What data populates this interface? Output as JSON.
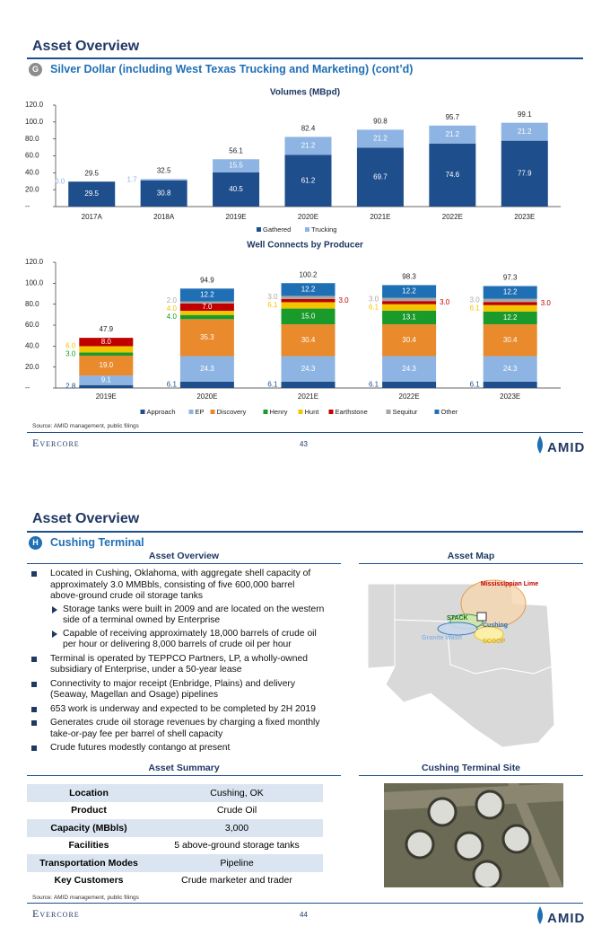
{
  "chart_data": [
    {
      "type": "bar",
      "stacked": true,
      "title": "Volumes (MBpd)",
      "categories": [
        "2017A",
        "2018A",
        "2019E",
        "2020E",
        "2021E",
        "2022E",
        "2023E"
      ],
      "series": [
        {
          "name": "Gathered",
          "color": "#1f4e8c",
          "values": [
            29.5,
            30.8,
            40.5,
            61.2,
            69.7,
            74.6,
            77.9
          ]
        },
        {
          "name": "Trucking",
          "color": "#8eb4e3",
          "values": [
            0,
            1.7,
            15.5,
            21.2,
            21.2,
            21.2,
            21.2
          ],
          "value_labels": [
            "0.0",
            "1.7",
            "15.5",
            "21.2",
            "21.2",
            "21.2",
            "21.2"
          ]
        }
      ],
      "total_labels": [
        29.5,
        32.5,
        56.1,
        82.4,
        90.8,
        95.7,
        99.1
      ],
      "ylim": [
        0,
        120
      ],
      "yticks": [
        {
          "value": 0,
          "label": "--"
        },
        {
          "value": 20,
          "label": "20.0"
        },
        {
          "value": 40,
          "label": "40.0"
        },
        {
          "value": 60,
          "label": "60.0"
        },
        {
          "value": 80,
          "label": "80.0"
        },
        {
          "value": 100,
          "label": "100.0"
        },
        {
          "value": 120,
          "label": "120.0"
        }
      ],
      "legend": "bottom"
    },
    {
      "type": "bar",
      "stacked": true,
      "title": "Well Connects by Producer",
      "categories": [
        "2019E",
        "2020E",
        "2021E",
        "2022E",
        "2023E"
      ],
      "series": [
        {
          "name": "Approach",
          "color": "#1f4e8c",
          "values": [
            2.8,
            6.1,
            6.1,
            6.1,
            6.1
          ],
          "value_labels": [
            "2.8",
            "6.1",
            "6.1",
            "6.1",
            "6.1"
          ]
        },
        {
          "name": "EP",
          "color": "#8eb4e3",
          "values": [
            9.1,
            24.3,
            24.3,
            24.3,
            24.3
          ],
          "value_labels": [
            "9.1",
            "24.3",
            "24.3",
            "24.3",
            "24.3"
          ]
        },
        {
          "name": "Discovery",
          "color": "#e98a2c",
          "values": [
            19.0,
            35.3,
            30.4,
            30.4,
            30.4
          ],
          "value_labels": [
            "19.0",
            "35.3",
            "30.4",
            "30.4",
            "30.4"
          ]
        },
        {
          "name": "Henry",
          "color": "#1a9a2a",
          "values": [
            3.0,
            4.0,
            15.0,
            13.1,
            12.2
          ],
          "value_labels": [
            "3.0",
            "4.0",
            "15.0",
            "13.1",
            "12.2"
          ]
        },
        {
          "name": "Hunt",
          "color": "#f2c500",
          "values": [
            6.0,
            4.0,
            6.1,
            6.1,
            6.1
          ],
          "value_labels": [
            "6.0",
            "4.0",
            "6.1",
            "6.1",
            "6.1"
          ]
        },
        {
          "name": "Earthstone",
          "color": "#c00000",
          "values": [
            8.0,
            7.0,
            3.0,
            3.0,
            3.0
          ],
          "value_labels": [
            "8.0",
            "7.0",
            "3.0",
            "3.0",
            "3.0"
          ]
        },
        {
          "name": "Sequitur",
          "color": "#a6a6a6",
          "values": [
            null,
            2.0,
            3.0,
            3.0,
            3.0
          ],
          "value_labels": [
            null,
            "2.0",
            "3.0",
            "3.0",
            "3.0"
          ]
        },
        {
          "name": "Other",
          "color": "#1f6fb5",
          "values": [
            null,
            12.2,
            12.2,
            12.2,
            12.2
          ]
        }
      ],
      "total_labels": [
        47.9,
        94.9,
        100.2,
        98.3,
        97.3
      ],
      "ylim": [
        0,
        120
      ],
      "yticks": [
        {
          "value": 0,
          "label": "--"
        },
        {
          "value": 20,
          "label": "20.0"
        },
        {
          "value": 40,
          "label": "40.0"
        },
        {
          "value": 60,
          "label": "60.0"
        },
        {
          "value": 80,
          "label": "80.0"
        },
        {
          "value": 100,
          "label": "100.0"
        },
        {
          "value": 120,
          "label": "120.0"
        }
      ],
      "legend": "bottom"
    }
  ],
  "page1": {
    "title": "Asset Overview",
    "section_letter": "G",
    "section": "Silver Dollar (including West Texas Trucking and Marketing) (cont’d)",
    "source": "Source: AMID management, public filings",
    "footer": "Evercore",
    "page_number": "43",
    "logo": "AMID"
  },
  "page2": {
    "title": "Asset Overview",
    "section_letter": "H",
    "section": "Cushing Terminal",
    "overview_heading": "Asset Overview",
    "bullets": [
      {
        "text": "Located in Cushing, Oklahoma, with aggregate shell capacity of approximately 3.0 MMBbls, consisting of five 600,000 barrel above-ground crude oil storage tanks",
        "sub": [
          "Storage tanks were built in 2009 and are located on the western side of a terminal owned by Enterprise",
          "Capable of receiving approximately 18,000 barrels of crude oil per hour or delivering 8,000 barrels of crude oil per hour"
        ]
      },
      {
        "text": "Terminal is operated by TEPPCO Partners, LP, a wholly-owned subsidiary of Enterprise, under a 50-year lease"
      },
      {
        "text": "Connectivity to major receipt (Enbridge, Plains) and delivery (Seaway, Magellan and Osage) pipelines"
      },
      {
        "text": "653 work is underway and expected to be completed by 2H 2019"
      },
      {
        "text": "Generates crude oil storage revenues by charging a fixed monthly take-or-pay fee per barrel of shell capacity"
      },
      {
        "text": "Crude futures modestly contango at present"
      }
    ],
    "map_heading": "Asset Map",
    "map_labels": [
      "Mississippian Lime",
      "STACK",
      "Cushing",
      "Granite Wash",
      "SCOOP"
    ],
    "summary_heading": "Asset Summary",
    "table": {
      "rows": [
        [
          "Location",
          "Cushing, OK"
        ],
        [
          "Product",
          "Crude Oil"
        ],
        [
          "Capacity (MBbls)",
          "3,000"
        ],
        [
          "Facilities",
          "5 above-ground storage tanks"
        ],
        [
          "Transportation Modes",
          "Pipeline"
        ],
        [
          "Key Customers",
          "Crude marketer and trader"
        ]
      ]
    },
    "site_heading": "Cushing Terminal Site",
    "source": "Source: AMID management, public filings",
    "footer": "Evercore",
    "page_number": "44",
    "logo": "AMID"
  }
}
